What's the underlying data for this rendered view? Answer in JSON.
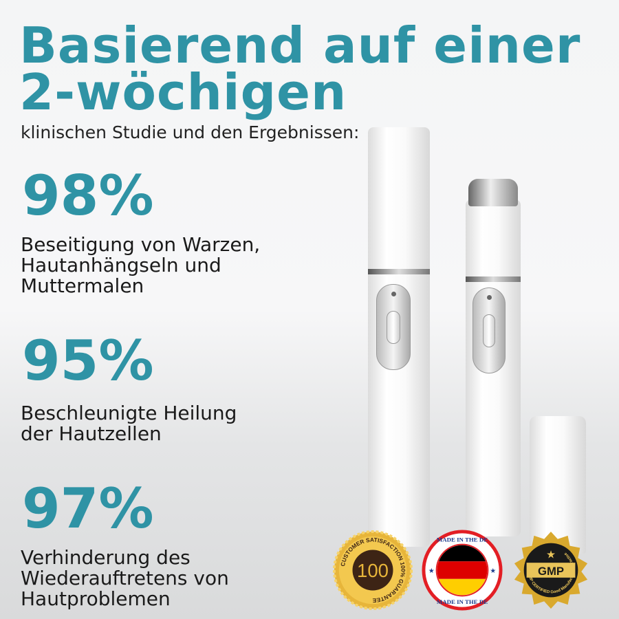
{
  "headline": {
    "line1": "Basierend auf einer",
    "line2": "2-wöchigen",
    "subtitle": "klinischen Studie und den Ergebnissen:"
  },
  "stats": [
    {
      "value": "98%",
      "lines": [
        "Beseitigung von Warzen,",
        "Hautanhängseln und",
        "Muttermalen"
      ]
    },
    {
      "value": "95%",
      "lines": [
        "Beschleunigte Heilung",
        "der Hautzellen"
      ]
    },
    {
      "value": "97%",
      "lines": [
        "Verhinderung des",
        "Wiederauftretens von",
        "Hautproblemen"
      ]
    }
  ],
  "badges": [
    {
      "name": "customer-satisfaction",
      "text": "CUSTOMER SATISFACTION 100% GUARANTEE"
    },
    {
      "name": "made-in-germany",
      "text": "MADE IN THE DE"
    },
    {
      "name": "gmp",
      "text": "GMP CERTIFIED Good Manufacturing Practice"
    }
  ],
  "colors": {
    "accent": "#2f93a5"
  }
}
